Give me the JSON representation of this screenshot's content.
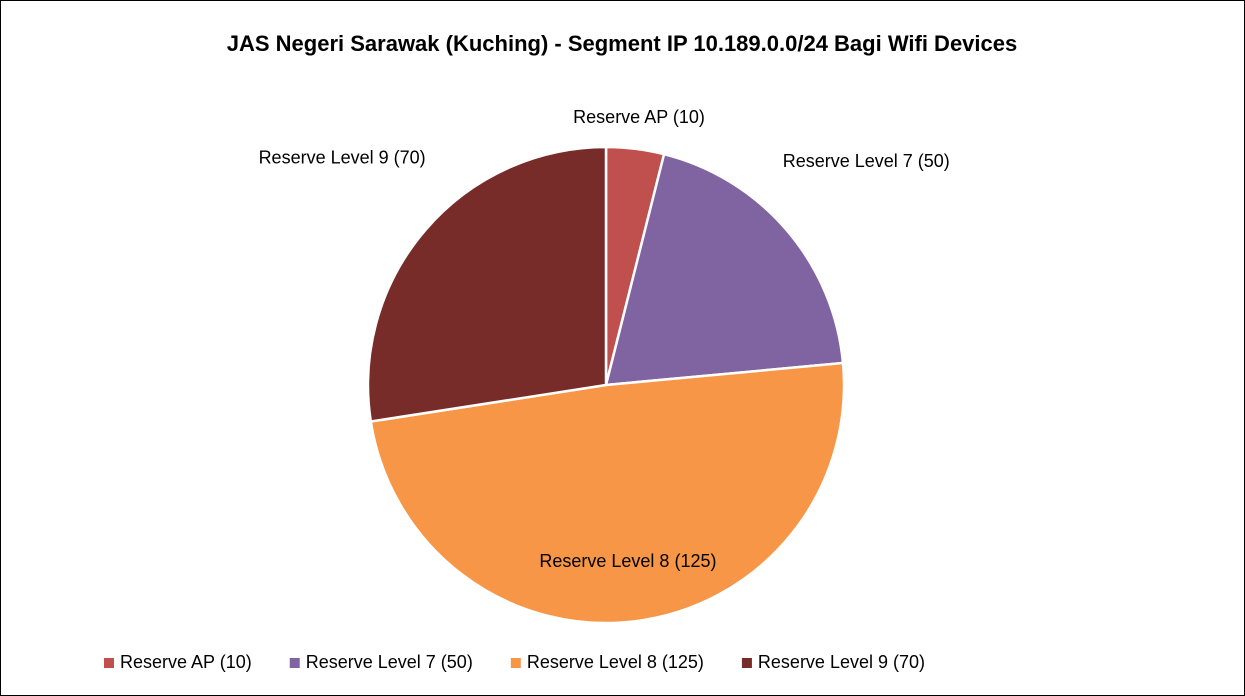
{
  "chart_data": {
    "type": "pie",
    "title": "JAS Negeri Sarawak (Kuching) - Segment IP 10.189.0.0/24 Bagi Wifi Devices",
    "categories": [
      "Reserve AP (10)",
      "Reserve Level 7 (50)",
      "Reserve Level 8 (125)",
      "Reserve Level 9 (70)"
    ],
    "values": [
      10,
      50,
      125,
      70
    ],
    "colors": [
      "#c0504d",
      "#8064a2",
      "#f79646",
      "#772c2a"
    ],
    "legend": "bottom"
  }
}
